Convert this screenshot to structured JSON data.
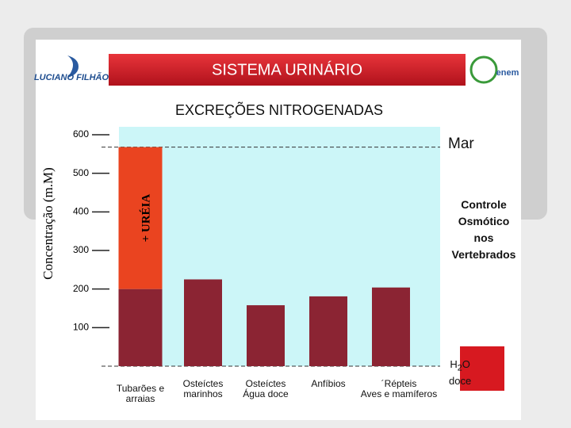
{
  "header": {
    "title": "SISTEMA URINÁRIO",
    "logo_left": "LUCIANO FILHÃO",
    "logo_right": "enem"
  },
  "chart_data": {
    "type": "bar",
    "stacked": true,
    "title": "EXCREÇÕES NITROGENADAS",
    "y_label": "Concentração (m.M)",
    "categories": [
      "Tubarões e\narraias",
      "Osteíctes\nmarinhos",
      "Osteíctes\nÁgua doce",
      "Anfíbios",
      "´Répteis\nAves e mamíferos"
    ],
    "series": [
      {
        "color": "#8b2433",
        "values": [
          200,
          225,
          158,
          181,
          204
        ]
      },
      {
        "name": "+ URÉIA",
        "color": "#ea4420",
        "values": [
          368,
          null,
          null,
          null,
          null
        ]
      }
    ],
    "ylim": [
      0,
      600
    ],
    "yticks": [
      100,
      200,
      300,
      400,
      500,
      600
    ],
    "reference_lines": [
      {
        "label": "Mar",
        "value": 568
      },
      {
        "label": "H₂O\ndoce",
        "value": 0
      }
    ],
    "annotation": "Controle\nOsmótico\nnos\nVertebrados",
    "plot_color": "#ccf6f8"
  }
}
